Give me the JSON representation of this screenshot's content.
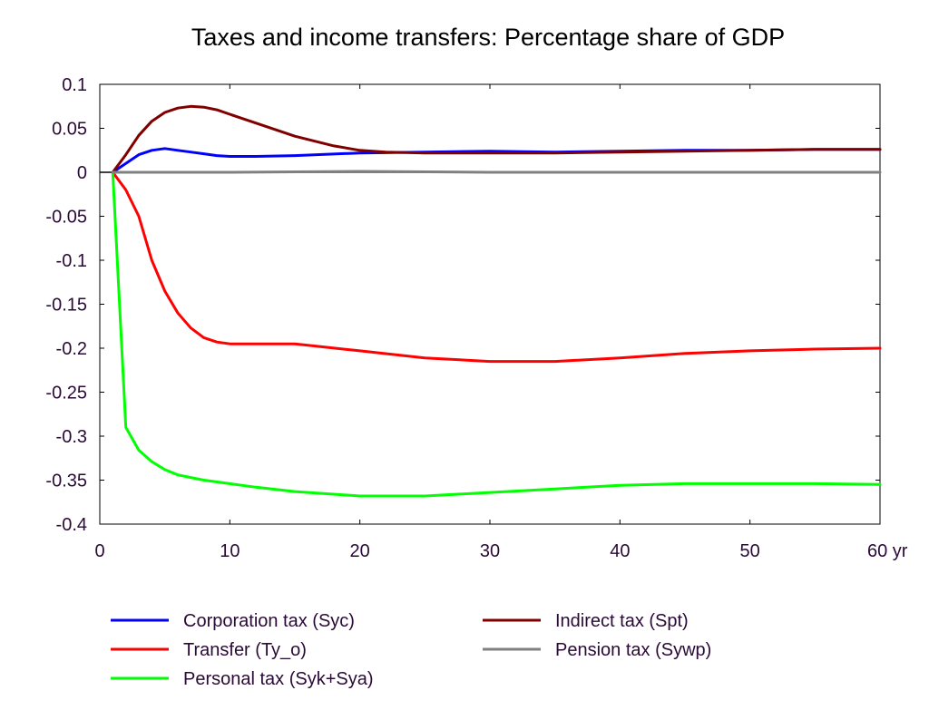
{
  "chart_data": {
    "type": "line",
    "title": "Taxes and income transfers: Percentage share of GDP",
    "xlabel": "",
    "ylabel": "",
    "xlim": [
      0,
      60
    ],
    "ylim": [
      -0.4,
      0.1
    ],
    "x_ticks": [
      "0",
      "10",
      "20",
      "30",
      "40",
      "50",
      "60 yr"
    ],
    "x_tick_values": [
      0,
      10,
      20,
      30,
      40,
      50,
      60
    ],
    "y_ticks": [
      "0.1",
      "0.05",
      "0",
      "-0.05",
      "-0.1",
      "-0.15",
      "-0.2",
      "-0.25",
      "-0.3",
      "-0.35",
      "-0.4"
    ],
    "y_tick_values": [
      0.1,
      0.05,
      0,
      -0.05,
      -0.1,
      -0.15,
      -0.2,
      -0.25,
      -0.3,
      -0.35,
      -0.4
    ],
    "grid": false,
    "legend_position": "bottom",
    "series": [
      {
        "name": "Corporation tax (Syc)",
        "color": "#0000ff",
        "x": [
          1,
          2,
          3,
          4,
          5,
          6,
          7,
          8,
          9,
          10,
          12,
          15,
          20,
          25,
          30,
          35,
          40,
          45,
          50,
          55,
          60
        ],
        "values": [
          0,
          0.01,
          0.02,
          0.025,
          0.027,
          0.025,
          0.023,
          0.021,
          0.019,
          0.018,
          0.018,
          0.019,
          0.022,
          0.023,
          0.024,
          0.023,
          0.024,
          0.025,
          0.025,
          0.026,
          0.026
        ]
      },
      {
        "name": "Transfer (Ty_o)",
        "color": "#ff0000",
        "x": [
          1,
          2,
          3,
          4,
          5,
          6,
          7,
          8,
          9,
          10,
          12,
          15,
          20,
          25,
          30,
          35,
          40,
          45,
          50,
          55,
          60
        ],
        "values": [
          0,
          -0.02,
          -0.05,
          -0.1,
          -0.135,
          -0.16,
          -0.177,
          -0.188,
          -0.193,
          -0.195,
          -0.195,
          -0.195,
          -0.203,
          -0.211,
          -0.215,
          -0.215,
          -0.211,
          -0.206,
          -0.203,
          -0.201,
          -0.2
        ]
      },
      {
        "name": "Personal tax (Syk+Sya)",
        "color": "#00ff00",
        "x": [
          1,
          2,
          3,
          4,
          5,
          6,
          7,
          8,
          10,
          12,
          15,
          20,
          25,
          30,
          35,
          40,
          45,
          50,
          55,
          60
        ],
        "values": [
          0,
          -0.29,
          -0.316,
          -0.329,
          -0.338,
          -0.344,
          -0.347,
          -0.35,
          -0.354,
          -0.358,
          -0.363,
          -0.368,
          -0.368,
          -0.364,
          -0.36,
          -0.356,
          -0.354,
          -0.354,
          -0.354,
          -0.355
        ]
      },
      {
        "name": "Indirect tax (Spt)",
        "color": "#800000",
        "x": [
          1,
          2,
          3,
          4,
          5,
          6,
          7,
          8,
          9,
          10,
          12,
          15,
          18,
          20,
          22,
          25,
          30,
          35,
          40,
          45,
          50,
          55,
          60
        ],
        "values": [
          0,
          0.02,
          0.042,
          0.058,
          0.068,
          0.073,
          0.075,
          0.074,
          0.071,
          0.066,
          0.056,
          0.041,
          0.03,
          0.025,
          0.023,
          0.022,
          0.022,
          0.022,
          0.023,
          0.024,
          0.025,
          0.026,
          0.026
        ]
      },
      {
        "name": "Pension tax (Sywp)",
        "color": "#808080",
        "x": [
          1,
          10,
          20,
          30,
          40,
          50,
          60
        ],
        "values": [
          0,
          0,
          0.001,
          0,
          0,
          0,
          0
        ]
      }
    ],
    "baseline_color": "#000000"
  }
}
